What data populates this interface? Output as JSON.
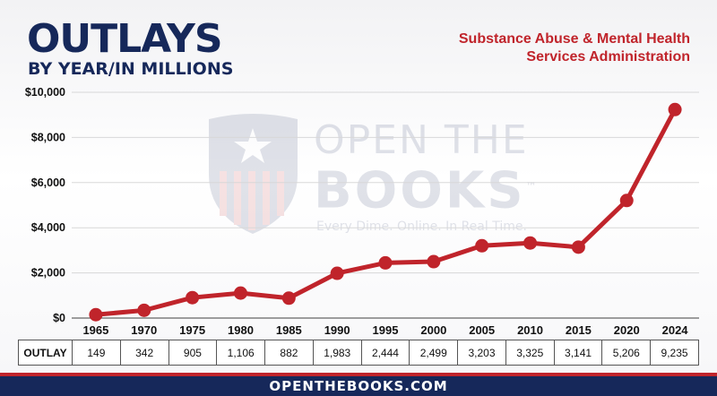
{
  "header": {
    "title": "OUTLAYS",
    "subtitle": "BY YEAR/IN MILLIONS",
    "agency_line1": "Substance Abuse & Mental Health",
    "agency_line2": "Services Administration"
  },
  "watermark": {
    "line1": "OPEN THE",
    "line2": "BOOKS",
    "tm": "™",
    "tagline": "Every Dime. Online. In Real Time."
  },
  "chart_data": {
    "type": "line",
    "categories": [
      "1965",
      "1970",
      "1975",
      "1980",
      "1985",
      "1990",
      "1995",
      "2000",
      "2005",
      "2010",
      "2015",
      "2020",
      "2024"
    ],
    "series": [
      {
        "values": [
          149,
          342,
          905,
          1106,
          882,
          1983,
          2444,
          2499,
          3203,
          3325,
          3141,
          5206,
          9235
        ],
        "color": "#c0242b"
      }
    ],
    "y_ticks": [
      "$0",
      "$2,000",
      "$4,000",
      "$6,000",
      "$8,000",
      "$10,000"
    ],
    "ylim": [
      0,
      10000
    ],
    "grid": true,
    "xlabel": "",
    "ylabel": ""
  },
  "table": {
    "header": "OUTLAY",
    "values": [
      "149",
      "342",
      "905",
      "1,106",
      "882",
      "1,983",
      "2,444",
      "2,499",
      "3,203",
      "3,325",
      "3,141",
      "5,206",
      "9,235"
    ]
  },
  "footer": {
    "text": "OPENTHEBOOKS.COM"
  },
  "colors": {
    "navy": "#16285a",
    "red": "#c0242b"
  }
}
